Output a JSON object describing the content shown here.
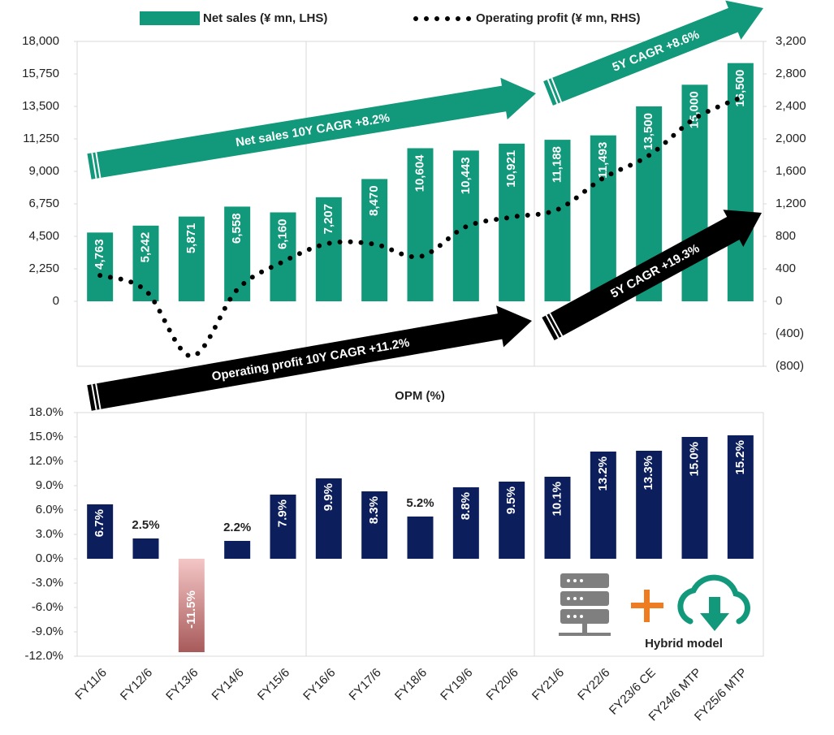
{
  "chart_data": [
    {
      "type": "bar",
      "series": [
        {
          "name": "Net sales (¥ mn, LHS)",
          "color": "#12997b",
          "values": [
            4763,
            5242,
            5871,
            6558,
            6160,
            7207,
            8470,
            10604,
            10443,
            10921,
            11188,
            11493,
            13500,
            15000,
            16500
          ],
          "value_labels": [
            "4,763",
            "5,242",
            "5,871",
            "6,558",
            "6,160",
            "7,207",
            "8,470",
            "10,604",
            "10,443",
            "10,921",
            "11,188",
            "11,493",
            "13,500",
            "15,000",
            "16,500"
          ]
        },
        {
          "name": "Operating profit (¥ mn, RHS)",
          "type": "line",
          "axis": "y2",
          "color": "#000000",
          "values": [
            319,
            131,
            -675,
            144,
            487,
            713,
            703,
            551,
            919,
            1037,
            1130,
            1517,
            1796,
            2250,
            2508
          ]
        }
      ],
      "ylim": [
        -4500,
        18000
      ],
      "yticks": [
        0,
        {
          "value": 2250,
          "label": "2,250"
        },
        {
          "value": 4500,
          "label": "4,500"
        },
        {
          "value": 6750,
          "label": "6,750"
        },
        {
          "value": 9000,
          "label": "9,000"
        },
        {
          "value": 11250,
          "label": "11,250"
        },
        {
          "value": 13500,
          "label": "13,500"
        },
        {
          "value": 15750,
          "label": "15,750"
        },
        {
          "value": 18000,
          "label": "18,000"
        }
      ],
      "y2lim": [
        -800,
        3200
      ],
      "y2ticks": [
        {
          "value": -800,
          "label": "(800)"
        },
        {
          "value": -400,
          "label": "(400)"
        },
        0,
        400,
        800,
        {
          "value": 1200,
          "label": "1,200"
        },
        {
          "value": 1600,
          "label": "1,600"
        },
        {
          "value": 2000,
          "label": "2,000"
        },
        {
          "value": 2400,
          "label": "2,400"
        },
        {
          "value": 2800,
          "label": "2,800"
        },
        {
          "value": 3200,
          "label": "3,200"
        }
      ],
      "annotations": [
        "Net sales 10Y CAGR +8.2%",
        "5Y CAGR +8.6%",
        "Operating profit 10Y CAGR +11.2%",
        "5Y CAGR +19.3%"
      ]
    },
    {
      "type": "bar",
      "title": "OPM (%)",
      "categories": [
        "FY11/6",
        "FY12/6",
        "FY13/6",
        "FY14/6",
        "FY15/6",
        "FY16/6",
        "FY17/6",
        "FY18/6",
        "FY19/6",
        "FY20/6",
        "FY21/6",
        "FY22/6",
        "FY23/6 CE",
        "FY24/6 MTP",
        "FY25/6 MTP"
      ],
      "values": [
        6.7,
        2.5,
        -11.5,
        2.2,
        7.9,
        9.9,
        8.3,
        5.2,
        8.8,
        9.5,
        10.1,
        13.2,
        13.3,
        15.0,
        15.2
      ],
      "value_labels": [
        "6.7%",
        "2.5%",
        "-11.5%",
        "2.2%",
        "7.9%",
        "9.9%",
        "8.3%",
        "5.2%",
        "8.8%",
        "9.5%",
        "10.1%",
        "13.2%",
        "13.3%",
        "15.0%",
        "15.2%"
      ],
      "color": "#0c1f5c",
      "negative_color": "#c47a7a",
      "ylim": [
        -12,
        18
      ],
      "yticks": [
        {
          "value": -12,
          "label": "-12.0%"
        },
        {
          "value": -9,
          "label": "-9.0%"
        },
        {
          "value": -6,
          "label": "-6.0%"
        },
        {
          "value": -3,
          "label": "-3.0%"
        },
        {
          "value": 0,
          "label": "0.0%"
        },
        {
          "value": 3,
          "label": "3.0%"
        },
        {
          "value": 6,
          "label": "6.0%"
        },
        {
          "value": 9,
          "label": "9.0%"
        },
        {
          "value": 12,
          "label": "12.0%"
        },
        {
          "value": 15,
          "label": "15.0%"
        },
        {
          "value": 18,
          "label": "18.0%"
        }
      ],
      "annotations": [
        "Hybrid model"
      ]
    }
  ]
}
